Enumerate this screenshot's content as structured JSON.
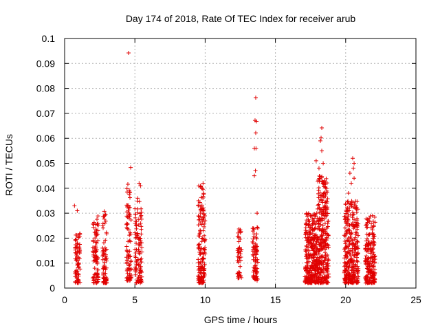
{
  "chart_data": {
    "type": "scatter",
    "title": "Day 174 of 2018, Rate Of TEC Index for receiver arub",
    "xlabel": "GPS time / hours",
    "ylabel": "ROTI / TECUs",
    "xlim": [
      0,
      25
    ],
    "ylim": [
      0,
      0.1
    ],
    "xticks": [
      0,
      5,
      10,
      15,
      20,
      25
    ],
    "yticks": [
      0,
      0.01,
      0.02,
      0.03,
      0.04,
      0.05,
      0.06,
      0.07,
      0.08,
      0.09,
      0.1
    ],
    "xtick_labels": [
      "0",
      "5",
      "10",
      "15",
      "20",
      "25"
    ],
    "ytick_labels": [
      "0",
      "0.01",
      "0.02",
      "0.03",
      "0.04",
      "0.05",
      "0.06",
      "0.07",
      "0.08",
      "0.09",
      "0.1"
    ],
    "grid": true,
    "marker": "+",
    "color": "#e00000",
    "clusters": [
      {
        "x_range": [
          0.75,
          1.1
        ],
        "y_min": 0.002,
        "y_max": 0.022,
        "count": 80
      },
      {
        "x_range": [
          2.0,
          2.4
        ],
        "y_min": 0.002,
        "y_max": 0.029,
        "count": 90
      },
      {
        "x_range": [
          2.7,
          3.0
        ],
        "y_min": 0.002,
        "y_max": 0.031,
        "count": 80
      },
      {
        "x_range": [
          4.4,
          4.75
        ],
        "y_min": 0.003,
        "y_max": 0.04,
        "count": 90
      },
      {
        "x_range": [
          5.0,
          5.5
        ],
        "y_min": 0.002,
        "y_max": 0.035,
        "count": 110
      },
      {
        "x_range": [
          9.5,
          10.0
        ],
        "y_min": 0.002,
        "y_max": 0.041,
        "count": 160
      },
      {
        "x_range": [
          12.3,
          12.6
        ],
        "y_min": 0.004,
        "y_max": 0.026,
        "count": 45
      },
      {
        "x_range": [
          13.35,
          13.75
        ],
        "y_min": 0.003,
        "y_max": 0.025,
        "count": 80
      },
      {
        "x_range": [
          17.1,
          18.0
        ],
        "y_min": 0.002,
        "y_max": 0.03,
        "count": 300
      },
      {
        "x_range": [
          18.0,
          18.8
        ],
        "y_min": 0.002,
        "y_max": 0.045,
        "count": 300
      },
      {
        "x_range": [
          19.9,
          20.9
        ],
        "y_min": 0.002,
        "y_max": 0.035,
        "count": 320
      },
      {
        "x_range": [
          21.4,
          22.1
        ],
        "y_min": 0.002,
        "y_max": 0.029,
        "count": 200
      }
    ],
    "outliers": [
      [
        0.7,
        0.033
      ],
      [
        0.9,
        0.031
      ],
      [
        4.55,
        0.0942
      ],
      [
        4.7,
        0.0483
      ],
      [
        4.5,
        0.0416
      ],
      [
        4.45,
        0.0385
      ],
      [
        5.3,
        0.042
      ],
      [
        5.4,
        0.041
      ],
      [
        5.2,
        0.036
      ],
      [
        9.85,
        0.042
      ],
      [
        9.7,
        0.0405
      ],
      [
        13.6,
        0.0763
      ],
      [
        13.55,
        0.0672
      ],
      [
        13.65,
        0.0668
      ],
      [
        13.6,
        0.0622
      ],
      [
        13.5,
        0.056
      ],
      [
        13.62,
        0.056
      ],
      [
        13.58,
        0.047
      ],
      [
        13.5,
        0.045
      ],
      [
        13.7,
        0.03
      ],
      [
        18.3,
        0.0642
      ],
      [
        18.25,
        0.0602
      ],
      [
        18.2,
        0.059
      ],
      [
        18.3,
        0.055
      ],
      [
        17.9,
        0.051
      ],
      [
        18.4,
        0.05
      ],
      [
        18.1,
        0.048
      ],
      [
        18.5,
        0.043
      ],
      [
        18.45,
        0.042
      ],
      [
        20.5,
        0.052
      ],
      [
        20.6,
        0.05
      ],
      [
        20.55,
        0.048
      ],
      [
        20.3,
        0.046
      ],
      [
        20.6,
        0.044
      ],
      [
        20.4,
        0.042
      ],
      [
        20.2,
        0.038
      ]
    ]
  }
}
